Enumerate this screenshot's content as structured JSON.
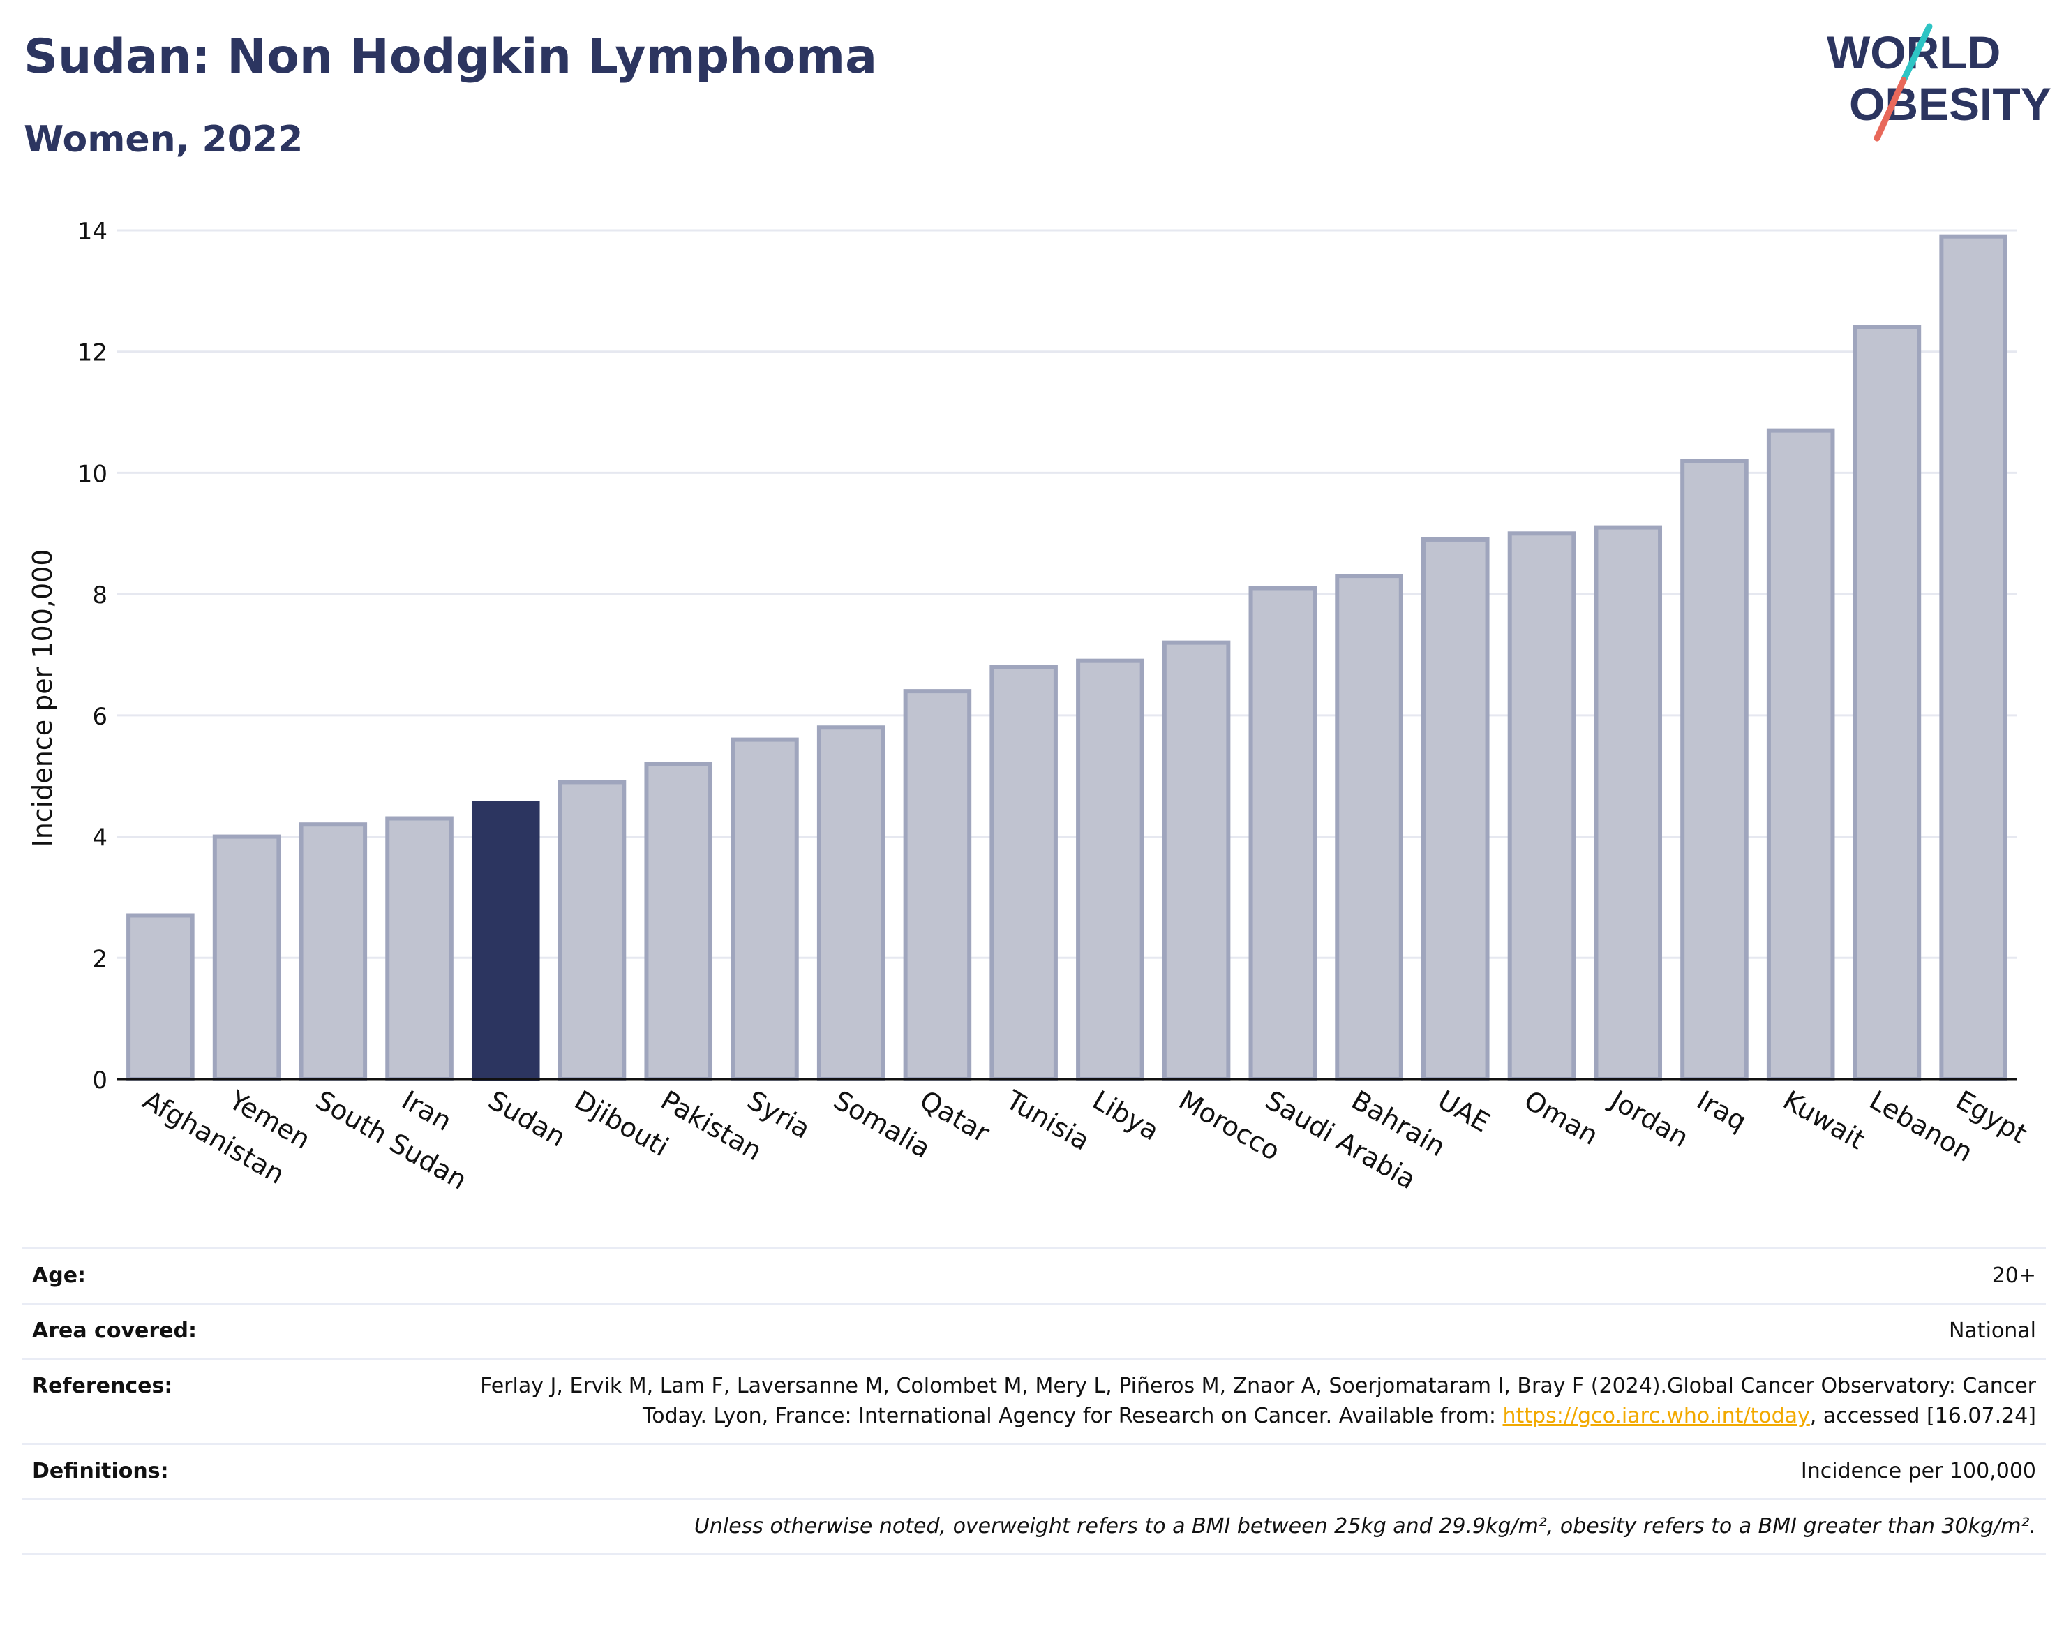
{
  "header": {
    "title": "Sudan: Non Hodgkin Lymphoma",
    "subtitle": "Women, 2022"
  },
  "logo": {
    "line1": "WORLD",
    "line2": "OBESITY",
    "colors": {
      "text": "#2c3560",
      "slash_top": "#2ec4c4",
      "slash_bottom": "#e8685a"
    }
  },
  "chart_data": {
    "type": "bar",
    "ylabel": "Incidence per 100,000",
    "xlabel": "",
    "ylim": [
      0,
      14
    ],
    "yticks": [
      0,
      2,
      4,
      6,
      8,
      10,
      12,
      14
    ],
    "grid": true,
    "highlight": "Sudan",
    "colors": {
      "bar": "#c0c3d0",
      "bar_edge": "#9fa5bd",
      "highlight": "#2c3560",
      "grid": "#e6e8f0"
    },
    "categories": [
      "Afghanistan",
      "Yemen",
      "South Sudan",
      "Iran",
      "Sudan",
      "Djibouti",
      "Pakistan",
      "Syria",
      "Somalia",
      "Qatar",
      "Tunisia",
      "Libya",
      "Morocco",
      "Saudi Arabia",
      "Bahrain",
      "UAE",
      "Oman",
      "Jordan",
      "Iraq",
      "Kuwait",
      "Lebanon",
      "Egypt"
    ],
    "values": [
      2.7,
      4.0,
      4.2,
      4.3,
      4.55,
      4.9,
      5.2,
      5.6,
      5.8,
      6.4,
      6.8,
      6.9,
      7.2,
      8.1,
      8.3,
      8.9,
      9.0,
      9.1,
      10.2,
      10.7,
      12.4,
      13.9
    ]
  },
  "info": {
    "rows": [
      {
        "key": "Age:",
        "value": "20+"
      },
      {
        "key": "Area covered:",
        "value": "National"
      },
      {
        "key": "References:",
        "value_pre": "Ferlay J, Ervik M, Lam F, Laversanne M, Colombet M, Mery L, Piñeros M, Znaor A, Soerjomataram I, Bray F (2024).Global Cancer Observatory: Cancer Today. Lyon, France: International Agency for Research on Cancer. Available from: ",
        "link": "https://gco.iarc.who.int/today",
        "value_post": ", accessed [16.07.24]"
      },
      {
        "key": "Definitions:",
        "value": "Incidence per 100,000"
      },
      {
        "key": "",
        "value": "Unless otherwise noted, overweight refers to a BMI between 25kg and 29.9kg/m², obesity refers to a BMI greater than 30kg/m²."
      }
    ]
  }
}
